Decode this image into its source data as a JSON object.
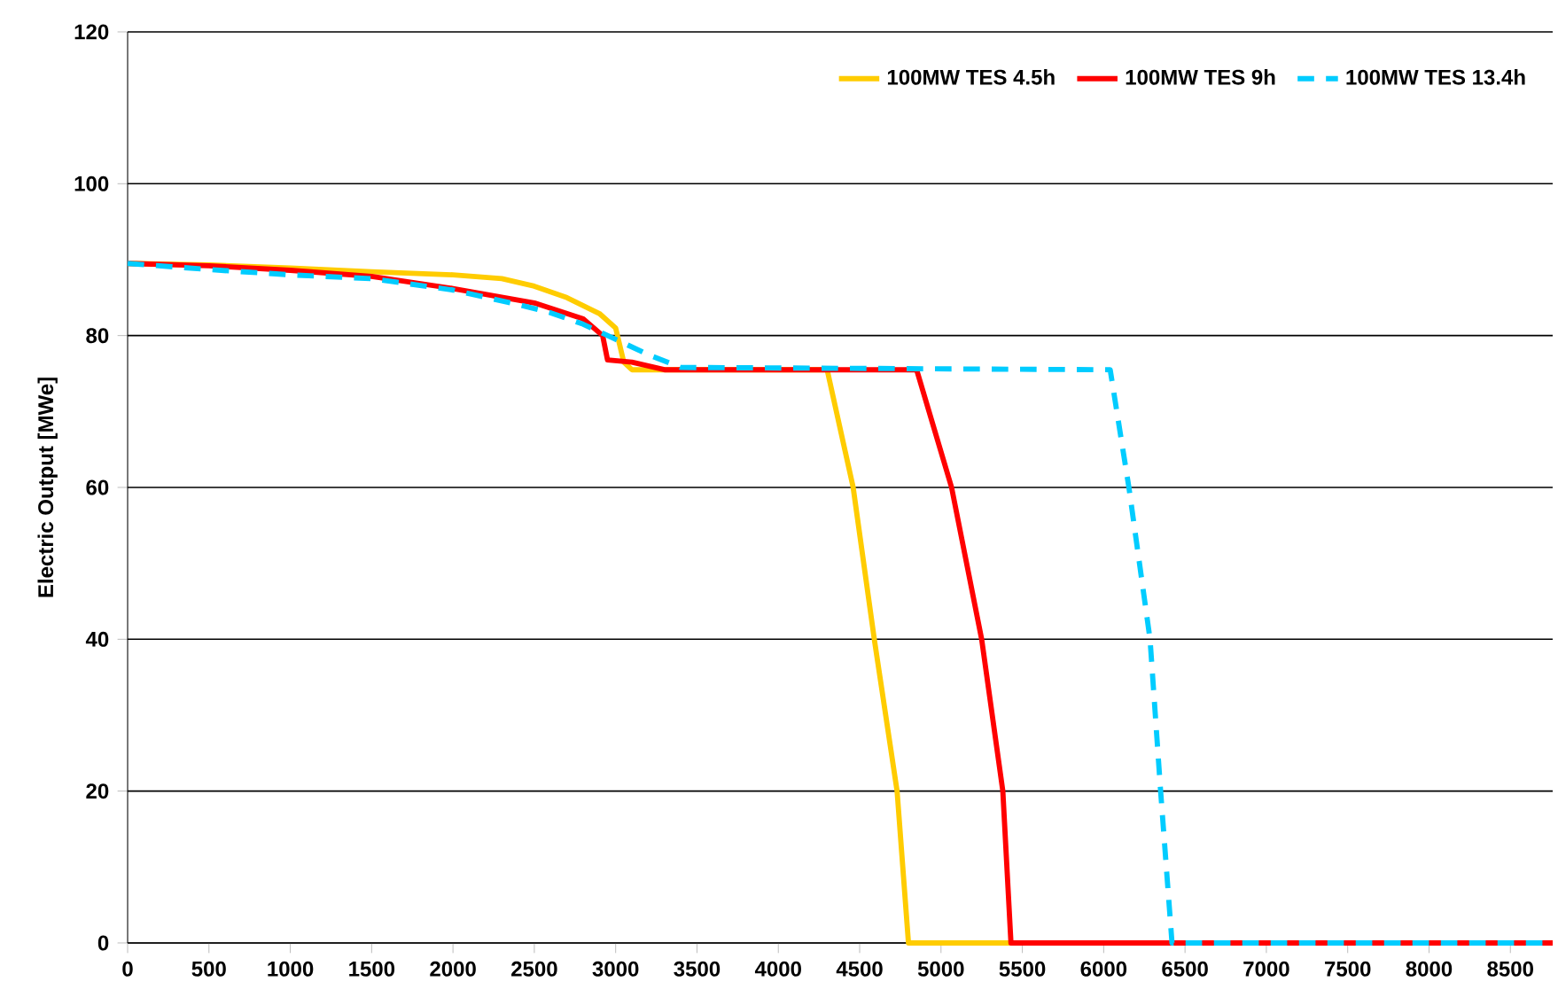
{
  "chart_data": {
    "type": "line",
    "ylabel": "Electric Output [MWe]",
    "xlim": [
      0,
      8760
    ],
    "ylim": [
      0,
      120
    ],
    "xticks": [
      0,
      500,
      1000,
      1500,
      2000,
      2500,
      3000,
      3500,
      4000,
      4500,
      5000,
      5500,
      6000,
      6500,
      7000,
      7500,
      8000,
      8500
    ],
    "yticks": [
      0,
      20,
      40,
      60,
      80,
      100,
      120
    ],
    "grid": "y",
    "legend": "top right",
    "marker": "none",
    "series": [
      {
        "name": "100MW TES 4.5h",
        "color": "#ffcc00",
        "line_style": "solid",
        "x": [
          0,
          500,
          1000,
          1500,
          2000,
          2300,
          2500,
          2700,
          2900,
          3000,
          3050,
          3100,
          4300,
          4460,
          4590,
          4730,
          4800,
          8760
        ],
        "values": [
          89.5,
          89.3,
          88.9,
          88.4,
          88.0,
          87.5,
          86.5,
          85.0,
          82.9,
          81.0,
          76.5,
          75.5,
          75.5,
          60,
          40,
          20,
          0,
          0
        ]
      },
      {
        "name": "100MW TES 9h",
        "color": "#ff0000",
        "line_style": "solid",
        "x": [
          0,
          500,
          1000,
          1500,
          2000,
          2500,
          2800,
          2920,
          2950,
          3100,
          3300,
          4850,
          5065,
          5250,
          5380,
          5430,
          8760
        ],
        "values": [
          89.5,
          89.2,
          88.6,
          87.8,
          86.2,
          84.3,
          82.2,
          80.0,
          76.8,
          76.5,
          75.5,
          75.5,
          60,
          40,
          20,
          0,
          0
        ]
      },
      {
        "name": "100MW TES 13.4h",
        "color": "#00ccff",
        "line_style": "dashed",
        "x": [
          0,
          500,
          1000,
          1500,
          2000,
          2400,
          2600,
          2800,
          3000,
          3200,
          3400,
          6040,
          6155,
          6285,
          6350,
          6420,
          8760
        ],
        "values": [
          89.5,
          88.7,
          88.0,
          87.5,
          86.0,
          84.1,
          83.0,
          81.5,
          79.5,
          77.5,
          75.8,
          75.5,
          60,
          40,
          20,
          0,
          0
        ]
      }
    ]
  }
}
